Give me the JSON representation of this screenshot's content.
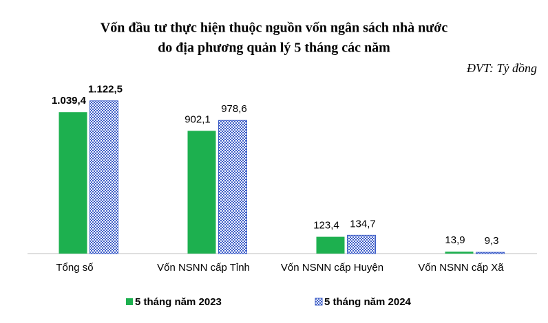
{
  "chart_data": {
    "type": "bar",
    "title": [
      "Vốn đầu tư thực hiện thuộc nguồn vốn ngân sách nhà nước",
      "do địa phương quản lý 5 tháng các năm"
    ],
    "unit_note": "ĐVT: Tỷ đồng",
    "categories": [
      "Tổng số",
      "Vốn NSNN cấp Tỉnh",
      "Vốn NSNN cấp Huyện",
      "Vốn NSNN cấp Xã"
    ],
    "series": [
      {
        "name": "5 tháng năm 2023",
        "color": "#1db04f",
        "values": [
          1039.4,
          902.1,
          123.4,
          13.9
        ],
        "value_labels": [
          "1.039,4",
          "902,1",
          "123,4",
          "13,9"
        ]
      },
      {
        "name": "5 tháng năm 2024",
        "color": "#3f5fc8",
        "pattern": "checker",
        "values": [
          1122.5,
          978.6,
          134.7,
          9.3
        ],
        "value_labels": [
          "1.122,5",
          "978,6",
          "134,7",
          "9,3"
        ]
      }
    ],
    "legend": "bottom"
  }
}
